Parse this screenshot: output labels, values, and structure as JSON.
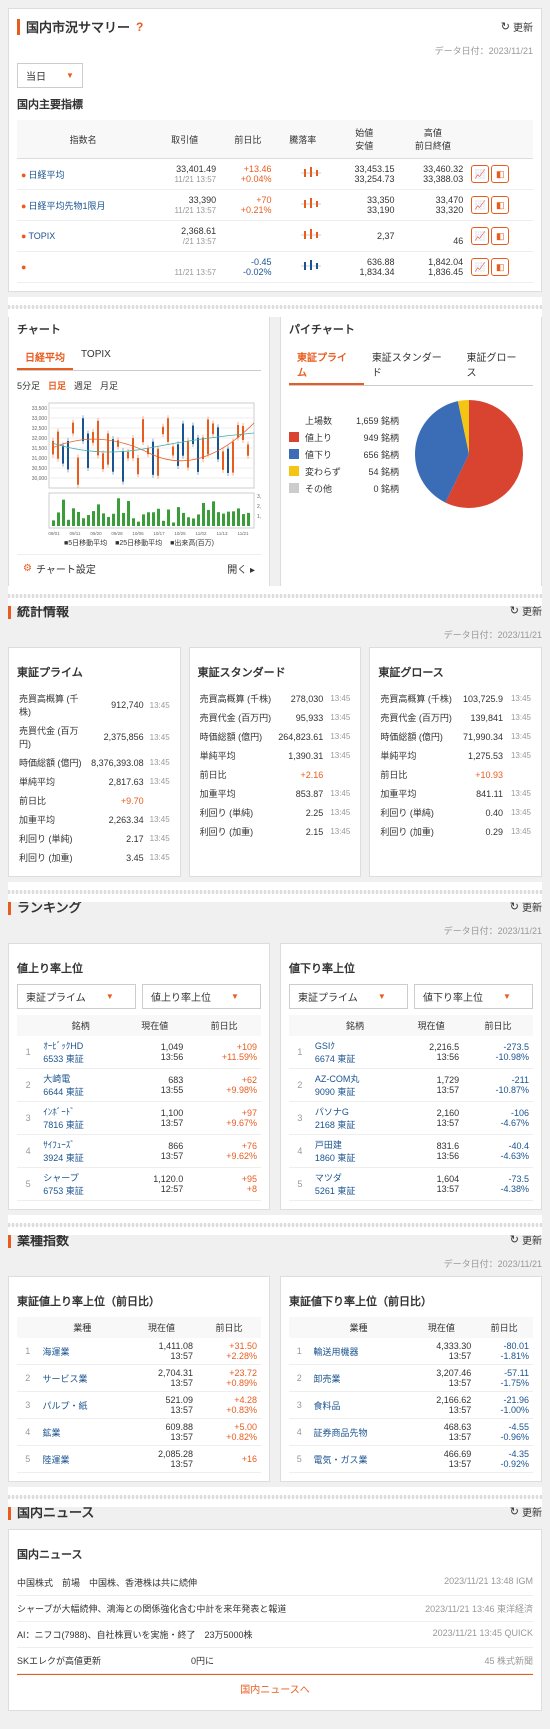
{
  "header": {
    "title": "国内市況サマリー",
    "update": "更新",
    "dataDate": "データ日付：2023/11/21",
    "period": "当日"
  },
  "indices": {
    "title": "国内主要指標",
    "cols": [
      "指数名",
      "取引値",
      "前日比",
      "騰落率",
      "始値\n安値",
      "高値\n前日終値",
      ""
    ],
    "rows": [
      {
        "name": "日経平均",
        "price": "33,401.49",
        "time": "11/21 13:57",
        "diff": "+13.46",
        "diffPct": "+0.04%",
        "open": "33,453.15",
        "low": "33,254.73",
        "high": "33,460.32",
        "prev": "33,388.03",
        "pos": true
      },
      {
        "name": "日経平均先物1限月",
        "price": "33,390",
        "time": "11/21 13:57",
        "diff": "+70",
        "diffPct": "+0.21%",
        "open": "33,350",
        "low": "33,190",
        "high": "33,470",
        "prev": "33,320",
        "pos": true
      },
      {
        "name": "TOPIX",
        "price": "2,368.61",
        "time": "/21 13:57",
        "diff": "",
        "diffPct": "",
        "open": "2,37",
        "low": "",
        "high": "",
        "prev": "46",
        "pos": true
      },
      {
        "name": "",
        "price": "",
        "time": "11/21 13:57",
        "diff": "-0.45",
        "diffPct": "-0.02%",
        "open": "636.88",
        "low": "1,834.34",
        "high": "1,842.04",
        "prev": "1,836.45",
        "pos": false
      }
    ]
  },
  "chart": {
    "title": "チャート",
    "tabs": [
      "日経平均",
      "TOPIX"
    ],
    "timeframes": [
      "5分足",
      "日足",
      "週足",
      "月足"
    ],
    "activeTab": 0,
    "activeTf": 1,
    "xLabels": [
      "09/01",
      "09/11",
      "09/20",
      "09/28",
      "10/06",
      "10/17",
      "10/25",
      "11/02",
      "11/13",
      "11/21"
    ],
    "yLabels": [
      "33,500",
      "33,000",
      "32,500",
      "32,000",
      "31,500",
      "31,000",
      "30,500",
      "30,000"
    ],
    "volYLabels": [
      "3,000",
      "2,000",
      "1,000"
    ],
    "legend": [
      "■5日移動平均",
      "■25日移動平均",
      "■出来高(百万)"
    ],
    "settings": "チャート設定",
    "expand": "開く",
    "colors": {
      "candle_up": "#e85d1f",
      "candle_down": "#1a5490",
      "ma5": "#e85d1f",
      "ma25": "#4aa",
      "vol": "#3a9d3a",
      "grid": "#eee"
    }
  },
  "pie": {
    "title": "パイチャート",
    "tabs": [
      "東証プライム",
      "東証スタンダード",
      "東証グロース"
    ],
    "activeTab": 0,
    "items": [
      {
        "label": "上場数",
        "value": "1,659 銘柄",
        "color": null
      },
      {
        "label": "値上り",
        "value": "949 銘柄",
        "color": "#d94430"
      },
      {
        "label": "値下り",
        "value": "656 銘柄",
        "color": "#3a6db5"
      },
      {
        "label": "変わらず",
        "value": "54 銘柄",
        "color": "#f5c516"
      },
      {
        "label": "その他",
        "value": "0 銘柄",
        "color": "#cccccc"
      }
    ],
    "slices": [
      {
        "c": "#d94430",
        "pct": 57.2
      },
      {
        "c": "#3a6db5",
        "pct": 39.5
      },
      {
        "c": "#f5c516",
        "pct": 3.3
      }
    ]
  },
  "stats": {
    "title": "統計情報",
    "dataDate": "データ日付：2023/11/21",
    "markets": [
      {
        "name": "東証プライム",
        "rows": [
          [
            "売買高概算 (千株)",
            "912,740",
            "13:45"
          ],
          [
            "売買代金 (百万円)",
            "2,375,856",
            "13:45"
          ],
          [
            "時価総額 (億円)",
            "8,376,393.08",
            "13:45"
          ],
          [
            "単純平均",
            "2,817.63",
            "13:45"
          ],
          [
            "前日比",
            "+9.70",
            ""
          ],
          [
            "加重平均",
            "2,263.34",
            "13:45"
          ],
          [
            "利回り (単純)",
            "2.17",
            "13:45"
          ],
          [
            "利回り (加重)",
            "3.45",
            "13:45"
          ]
        ]
      },
      {
        "name": "東証スタンダード",
        "rows": [
          [
            "売買高概算 (千株)",
            "278,030",
            "13:45"
          ],
          [
            "売買代金 (百万円)",
            "95,933",
            "13:45"
          ],
          [
            "時価総額 (億円)",
            "264,823.61",
            "13:45"
          ],
          [
            "単純平均",
            "1,390.31",
            "13:45"
          ],
          [
            "前日比",
            "+2.16",
            ""
          ],
          [
            "加重平均",
            "853.87",
            "13:45"
          ],
          [
            "利回り (単純)",
            "2.25",
            "13:45"
          ],
          [
            "利回り (加重)",
            "2.15",
            "13:45"
          ]
        ]
      },
      {
        "name": "東証グロース",
        "rows": [
          [
            "売買高概算 (千株)",
            "103,725.9",
            "13:45"
          ],
          [
            "売買代金 (百万円)",
            "139,841",
            "13:45"
          ],
          [
            "時価総額 (億円)",
            "71,990.34",
            "13:45"
          ],
          [
            "単純平均",
            "1,275.53",
            "13:45"
          ],
          [
            "前日比",
            "+10.93",
            ""
          ],
          [
            "加重平均",
            "841.11",
            "13:45"
          ],
          [
            "利回り (単純)",
            "0.40",
            "13:45"
          ],
          [
            "利回り (加重)",
            "0.29",
            "13:45"
          ]
        ]
      }
    ]
  },
  "ranking": {
    "title": "ランキング",
    "dataDate": "データ日付：2023/11/21",
    "up": {
      "title": "値上り率上位",
      "market": "東証プライム",
      "type": "値上り率上位",
      "cols": [
        "銘柄",
        "現在値",
        "前日比"
      ],
      "rows": [
        [
          "ｵｰﾋﾞｯｸHD\n6533 東証",
          "1,049\n13:56",
          "+109\n+11.59%"
        ],
        [
          "大崎電\n6644 東証",
          "683\n13:55",
          "+62\n+9.98%"
        ],
        [
          "ｲﾝﾎﾞｰﾄﾞ\n7816 東証",
          "1,100\n13:57",
          "+97\n+9.67%"
        ],
        [
          "ｻｲﾌｭｰｽﾞ\n3924 東証",
          "866\n13:57",
          "+76\n+9.62%"
        ],
        [
          "シャープ\n6753 東証",
          "1,120.0\n12:57",
          "+95\n+8"
        ]
      ]
    },
    "down": {
      "title": "値下り率上位",
      "market": "東証プライム",
      "type": "値下り率上位",
      "cols": [
        "銘柄",
        "現在値",
        "前日比"
      ],
      "rows": [
        [
          "GSIｸ\n6674 東証",
          "2,216.5\n13:56",
          "-273.5\n-10.98%"
        ],
        [
          "AZ-COM丸\n9090 東証",
          "1,729\n13:57",
          "-211\n-10.87%"
        ],
        [
          "パソナG\n2168 東証",
          "2,160\n13:57",
          "-106\n-4.67%"
        ],
        [
          "戸田建\n1860 東証",
          "831.6\n13:56",
          "-40.4\n-4.63%"
        ],
        [
          "マツダ\n5261 東証",
          "1,604\n13:57",
          "-73.5\n-4.38%"
        ]
      ]
    }
  },
  "sector": {
    "title": "業種指数",
    "dataDate": "データ日付：2023/11/21",
    "up": {
      "title": "東証値上り率上位（前日比）",
      "cols": [
        "業種",
        "現在値",
        "前日比"
      ],
      "rows": [
        [
          "海運業",
          "1,411.08\n13:57",
          "+31.50\n+2.28%"
        ],
        [
          "サービス業",
          "2,704.31\n13:57",
          "+23.72\n+0.89%"
        ],
        [
          "パルプ・紙",
          "521.09\n13:57",
          "+4.28\n+0.83%"
        ],
        [
          "鉱業",
          "609.88\n13:57",
          "+5.00\n+0.82%"
        ],
        [
          "陸運業",
          "2,085.28\n13:57",
          "+16"
        ]
      ]
    },
    "down": {
      "title": "東証値下り率上位（前日比）",
      "cols": [
        "業種",
        "現在値",
        "前日比"
      ],
      "rows": [
        [
          "輸送用機器",
          "4,333.30\n13:57",
          "-80.01\n-1.81%"
        ],
        [
          "卸売業",
          "3,207.46\n13:57",
          "-57.11\n-1.75%"
        ],
        [
          "食料品",
          "2,166.62\n13:57",
          "-21.96\n-1.00%"
        ],
        [
          "証券商品先物",
          "468.63\n13:57",
          "-4.55\n-0.96%"
        ],
        [
          "電気・ガス業",
          "466.69\n13:57",
          "-4.35\n-0.92%"
        ]
      ]
    }
  },
  "news": {
    "title": "国内ニュース",
    "sub": "国内ニュース",
    "more": "国内ニュースへ",
    "items": [
      {
        "text": "<IGM>中国株式　前場　中国株、香港株は共に続伸",
        "meta": "2023/11/21 13:48 IGM"
      },
      {
        "text": "シャープが大幅続伸、鴻海との関係強化含む中計を来年発表と報道",
        "meta": "2023/11/21 13:46 東洋経済"
      },
      {
        "text": "<TDnet>AI：ニフコ(7988)、自社株買いを実施・終了　23万5000株",
        "meta": "2023/11/21 13:45 QUICK"
      },
      {
        "text": "SKエレクが高値更新　　　　　　　　　　0円に",
        "meta": "　　　　　　45 株式新聞"
      }
    ]
  }
}
